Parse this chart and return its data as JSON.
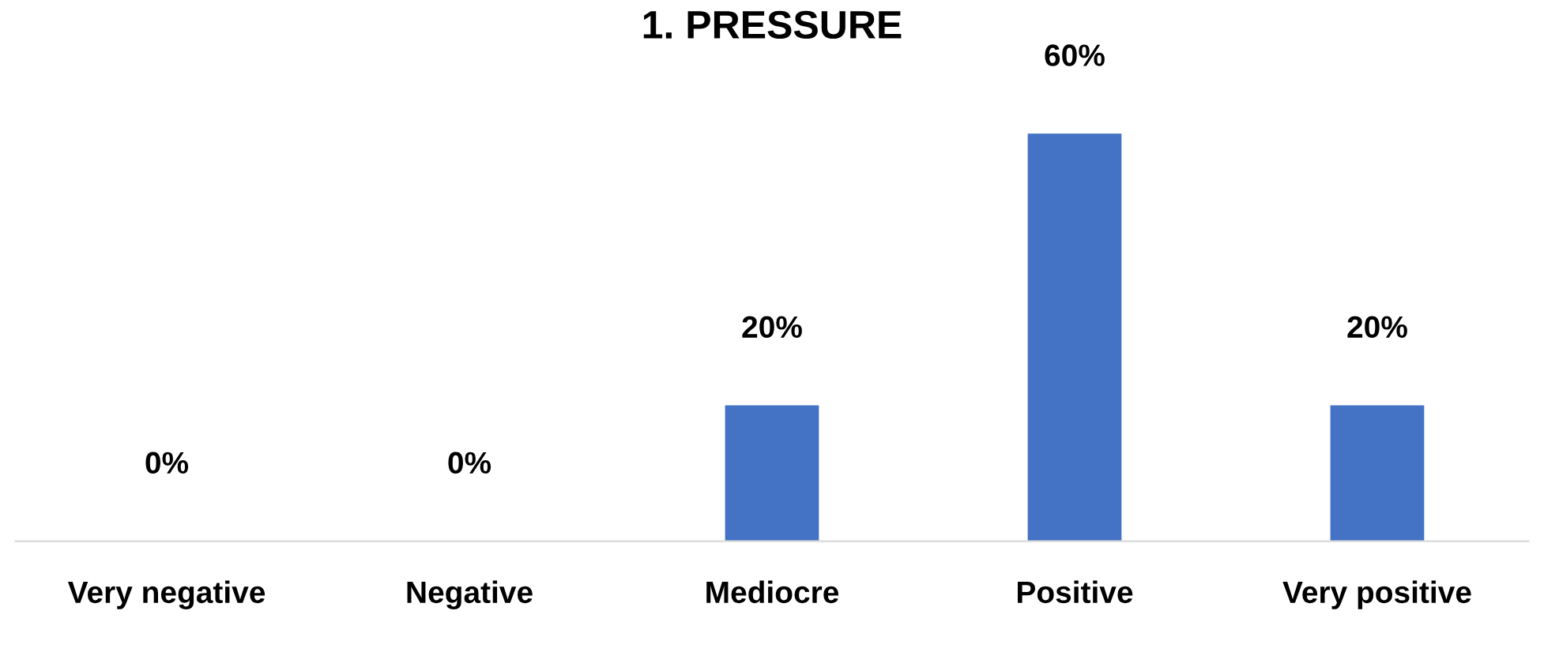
{
  "chart_data": {
    "type": "bar",
    "title": "1. PRESSURE",
    "categories": [
      "Very negative",
      "Negative",
      "Mediocre",
      "Positive",
      "Very positive"
    ],
    "values": [
      0,
      0,
      20,
      60,
      20
    ],
    "value_labels": [
      "0%",
      "0%",
      "20%",
      "60%",
      "20%"
    ],
    "color": "#4472c4",
    "grid": false,
    "legend": false
  }
}
